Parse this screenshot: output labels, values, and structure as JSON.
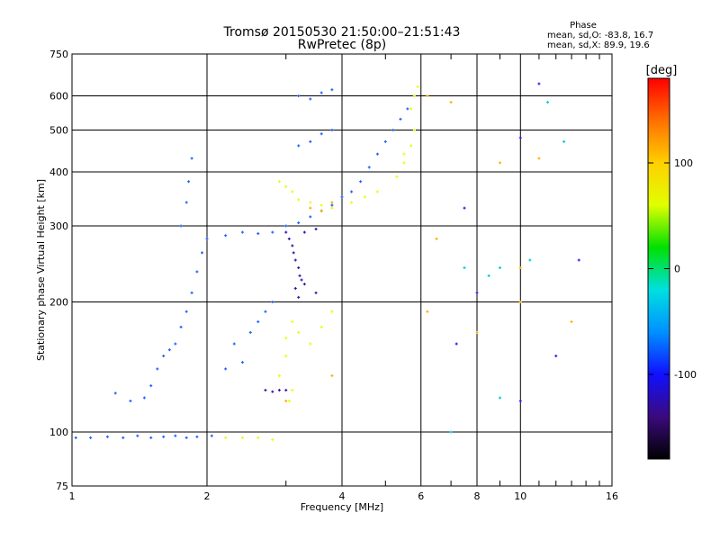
{
  "chart_data": {
    "type": "scatter",
    "title": "Tromsø 20150530 21:50:00–21:51:43",
    "subtitle": "RwPretec (8p)",
    "xlabel": "Frequency [MHz]",
    "ylabel": "Stationary phase Virtual Height [km]",
    "x_scale": "log",
    "y_scale": "log",
    "xlim": [
      1,
      16
    ],
    "ylim": [
      75,
      750
    ],
    "grid": true,
    "x_ticks": [
      1,
      2,
      4,
      6,
      8,
      10,
      16
    ],
    "x_minor_ticks": [
      3,
      5,
      7,
      9,
      11,
      12,
      13,
      14,
      15
    ],
    "y_ticks": [
      75,
      100,
      200,
      300,
      400,
      500,
      600,
      750
    ],
    "stats": {
      "title": "Phase",
      "line_o": "mean, sd,O: -83.8, 16.7",
      "line_x": "mean, sd,X:  89.9, 19.6"
    },
    "colorbar": {
      "label": "[deg]",
      "range": [
        -180,
        180
      ],
      "ticks": [
        100,
        0,
        -100
      ],
      "colors": [
        "#000000",
        "#3b0a7d",
        "#1010ff",
        "#0090ff",
        "#00e0e0",
        "#00e000",
        "#e0ff00",
        "#ffd000",
        "#ff7000",
        "#ff0000"
      ]
    },
    "series": [
      {
        "name": "",
        "color": "#1e63ff",
        "points": [
          [
            1.02,
            97
          ],
          [
            1.1,
            97
          ],
          [
            1.2,
            97.5
          ],
          [
            1.3,
            97
          ],
          [
            1.4,
            98
          ],
          [
            1.5,
            97
          ],
          [
            1.6,
            97.5
          ],
          [
            1.7,
            98
          ],
          [
            1.8,
            97
          ],
          [
            1.9,
            97.5
          ],
          [
            2.05,
            98
          ],
          [
            1.25,
            123
          ],
          [
            1.35,
            118
          ],
          [
            1.45,
            120
          ],
          [
            1.5,
            128
          ],
          [
            1.55,
            140
          ],
          [
            1.6,
            150
          ],
          [
            1.65,
            155
          ],
          [
            1.7,
            160
          ],
          [
            1.75,
            175
          ],
          [
            1.8,
            190
          ],
          [
            1.85,
            210
          ],
          [
            1.9,
            235
          ],
          [
            1.95,
            260
          ],
          [
            2.0,
            280
          ],
          [
            2.2,
            285
          ],
          [
            2.4,
            290
          ],
          [
            2.6,
            288
          ],
          [
            2.8,
            290
          ],
          [
            3.0,
            300
          ],
          [
            3.2,
            305
          ],
          [
            3.4,
            315
          ],
          [
            3.6,
            325
          ],
          [
            3.8,
            335
          ],
          [
            4.0,
            350
          ],
          [
            4.2,
            360
          ],
          [
            4.4,
            380
          ],
          [
            4.6,
            410
          ],
          [
            4.8,
            440
          ],
          [
            5.0,
            470
          ],
          [
            5.2,
            500
          ],
          [
            5.4,
            530
          ],
          [
            5.6,
            560
          ],
          [
            5.8,
            600
          ],
          [
            1.75,
            300
          ],
          [
            1.8,
            340
          ],
          [
            1.82,
            380
          ],
          [
            1.85,
            430
          ],
          [
            2.3,
            160
          ],
          [
            2.5,
            170
          ],
          [
            2.6,
            180
          ],
          [
            2.7,
            190
          ],
          [
            2.8,
            200
          ],
          [
            2.2,
            140
          ],
          [
            2.4,
            145
          ],
          [
            3.2,
            600
          ],
          [
            3.4,
            590
          ],
          [
            3.6,
            610
          ],
          [
            3.8,
            620
          ],
          [
            3.2,
            460
          ],
          [
            3.4,
            470
          ],
          [
            3.6,
            490
          ],
          [
            3.8,
            500
          ]
        ]
      },
      {
        "name": "",
        "color": "#3c14a8",
        "points": [
          [
            3.0,
            290
          ],
          [
            3.05,
            280
          ],
          [
            3.1,
            270
          ],
          [
            3.12,
            260
          ],
          [
            3.15,
            250
          ],
          [
            3.2,
            240
          ],
          [
            3.22,
            230
          ],
          [
            3.25,
            225
          ],
          [
            3.15,
            215
          ],
          [
            3.2,
            205
          ],
          [
            3.3,
            290
          ],
          [
            3.5,
            295
          ],
          [
            2.7,
            125
          ],
          [
            2.8,
            124
          ],
          [
            2.9,
            125
          ],
          [
            3.0,
            125
          ],
          [
            3.3,
            220
          ],
          [
            3.5,
            210
          ]
        ]
      },
      {
        "name": "",
        "color": "#e8ff00",
        "points": [
          [
            2.2,
            97
          ],
          [
            2.4,
            97
          ],
          [
            2.6,
            97
          ],
          [
            2.8,
            96
          ],
          [
            2.9,
            135
          ],
          [
            3.0,
            150
          ],
          [
            3.0,
            165
          ],
          [
            3.1,
            180
          ],
          [
            3.2,
            170
          ],
          [
            3.1,
            125
          ],
          [
            3.05,
            118
          ],
          [
            3.4,
            160
          ],
          [
            3.6,
            175
          ],
          [
            3.8,
            190
          ],
          [
            2.9,
            380
          ],
          [
            3.0,
            370
          ],
          [
            3.1,
            360
          ],
          [
            3.2,
            345
          ],
          [
            3.4,
            340
          ],
          [
            3.6,
            335
          ],
          [
            3.8,
            330
          ],
          [
            4.2,
            340
          ],
          [
            4.5,
            350
          ],
          [
            4.8,
            360
          ],
          [
            5.3,
            390
          ],
          [
            5.5,
            420
          ],
          [
            5.7,
            460
          ],
          [
            5.8,
            500
          ],
          [
            5.7,
            560
          ],
          [
            5.8,
            600
          ],
          [
            5.9,
            630
          ],
          [
            5.5,
            440
          ]
        ]
      },
      {
        "name": "",
        "color": "#ffb000",
        "points": [
          [
            3.4,
            330
          ],
          [
            3.6,
            325
          ],
          [
            3.8,
            340
          ],
          [
            3.0,
            118
          ],
          [
            3.8,
            135
          ],
          [
            6.2,
            600
          ],
          [
            6.5,
            280
          ],
          [
            7.0,
            580
          ],
          [
            6.2,
            190
          ],
          [
            10.0,
            240
          ],
          [
            11.0,
            430
          ],
          [
            13.0,
            180
          ],
          [
            8.0,
            170
          ],
          [
            9.0,
            420
          ],
          [
            10.0,
            200
          ]
        ]
      },
      {
        "name": "",
        "color": "#00c8e0",
        "points": [
          [
            7.0,
            100
          ],
          [
            8.5,
            230
          ],
          [
            9.0,
            240
          ],
          [
            10.5,
            250
          ],
          [
            11.5,
            580
          ],
          [
            12.5,
            470
          ],
          [
            9.0,
            120
          ],
          [
            7.5,
            240
          ]
        ]
      },
      {
        "name": "",
        "color": "#2a1aff",
        "points": [
          [
            7.2,
            160
          ],
          [
            7.5,
            330
          ],
          [
            8.0,
            210
          ],
          [
            11.0,
            640
          ],
          [
            13.5,
            250
          ],
          [
            12.0,
            150
          ],
          [
            10.0,
            480
          ],
          [
            10.0,
            118
          ]
        ]
      }
    ]
  }
}
